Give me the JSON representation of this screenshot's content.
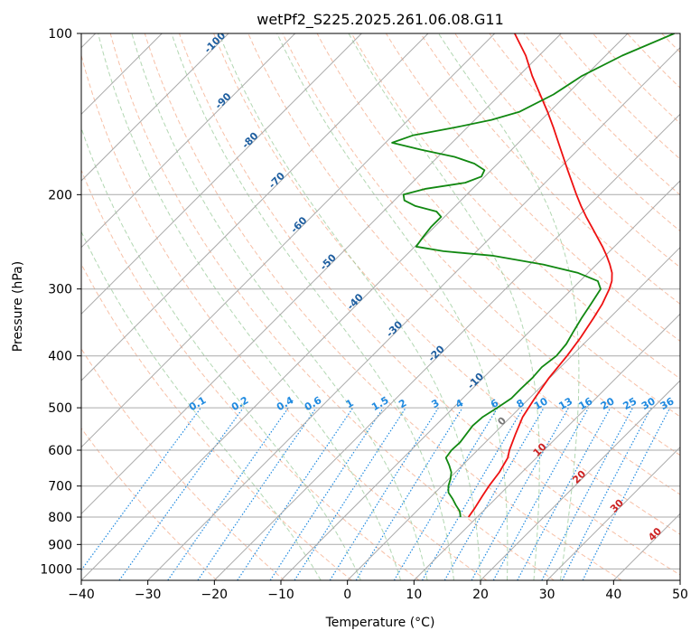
{
  "chart_data": {
    "type": "line",
    "title": "wetPf2_S225.2025.261.06.08.G11",
    "xlabel": "Temperature (°C)",
    "ylabel": "Pressure (hPa)",
    "xlim": [
      -40,
      50
    ],
    "ylim": [
      1050,
      100
    ],
    "y_scale": "log",
    "grid": true,
    "x_ticks": [
      -40,
      -30,
      -20,
      -10,
      0,
      10,
      20,
      30,
      40,
      50
    ],
    "y_ticks": [
      100,
      200,
      300,
      400,
      500,
      600,
      700,
      800,
      900,
      1000
    ],
    "colors": {
      "temperature": "#ee1111",
      "dewpoint": "#118811",
      "dry_adiabats": "#f4a582",
      "moist_adiabats": "#98c998",
      "mixing_ratio": "#1f8ae0",
      "isotherms": "#999999",
      "sat_adiabat_label": "#1f5fa0"
    },
    "series": [
      {
        "p": [
          800,
          770,
          730,
          700,
          660,
          620,
          600,
          560,
          520,
          480,
          440,
          400,
          370,
          340,
          320,
          300,
          290,
          280,
          270,
          260,
          250,
          240,
          230,
          220,
          210,
          200,
          180,
          160,
          150,
          140,
          130,
          120,
          110,
          100
        ],
        "x": [
          8.7,
          8.3,
          7.6,
          7.1,
          6.6,
          5.7,
          4.8,
          3.3,
          1.8,
          0.8,
          -0.1,
          -0.7,
          -1.4,
          -2.4,
          -3.2,
          -4.4,
          -5.2,
          -6.4,
          -8.0,
          -9.8,
          -11.8,
          -14.0,
          -16.3,
          -18.7,
          -21.1,
          -23.5,
          -28.5,
          -34.0,
          -37.0,
          -40.3,
          -44.0,
          -48.0,
          -52.0,
          -57.0
        ]
      },
      {
        "p": [
          800,
          780,
          760,
          740,
          720,
          700,
          680,
          660,
          640,
          620,
          600,
          580,
          560,
          540,
          520,
          500,
          480,
          460,
          440,
          420,
          400,
          380,
          360,
          340,
          320,
          300,
          290,
          280,
          270,
          260,
          255,
          250,
          240,
          230,
          220,
          215,
          210,
          205,
          200,
          195,
          190,
          185,
          180,
          175,
          170,
          165,
          160,
          155,
          150,
          145,
          140,
          130,
          120,
          110,
          100
        ],
        "x": [
          7.5,
          6.5,
          5.0,
          3.6,
          2.0,
          1.0,
          0.3,
          -0.6,
          -2.0,
          -3.6,
          -3.9,
          -3.8,
          -4.1,
          -4.4,
          -4.2,
          -3.4,
          -2.7,
          -2.7,
          -2.6,
          -2.8,
          -2.3,
          -2.6,
          -3.4,
          -4.2,
          -4.9,
          -5.7,
          -7.3,
          -11.5,
          -18.0,
          -27.0,
          -35.0,
          -39.8,
          -40.2,
          -40.5,
          -40.5,
          -42.0,
          -46.0,
          -48.5,
          -49.5,
          -47.0,
          -42.0,
          -40.5,
          -41.0,
          -43.5,
          -47.5,
          -53.5,
          -59.0,
          -57.0,
          -52.0,
          -47.5,
          -44.5,
          -42.0,
          -40.5,
          -37.5,
          -33.0
        ]
      }
    ],
    "dry_adiabat_thetas_k": [
      250,
      260,
      270,
      280,
      290,
      300,
      310,
      320,
      330,
      340,
      350,
      360,
      370,
      380,
      390,
      400,
      410,
      420,
      430,
      440,
      450,
      460,
      470,
      480,
      490,
      500
    ],
    "moist_adiabat_starts_c": [
      -4,
      2,
      8,
      12,
      16,
      20,
      24,
      28,
      32
    ],
    "mixing_ratio_lines": [
      "0.1",
      "0.2",
      "0.4",
      "0.6",
      "1",
      "1.5",
      "2",
      "3",
      "4",
      "6",
      "8",
      "10",
      "13",
      "16",
      "20",
      "25",
      "30",
      "36"
    ],
    "sat_adiabat_labels": [
      "-100",
      "-90",
      "-80",
      "-70",
      "-60",
      "-50",
      "-40",
      "-30",
      "-20",
      "-10"
    ],
    "wet_bulb_labels": [
      "0",
      "10",
      "20",
      "30",
      "40"
    ]
  }
}
